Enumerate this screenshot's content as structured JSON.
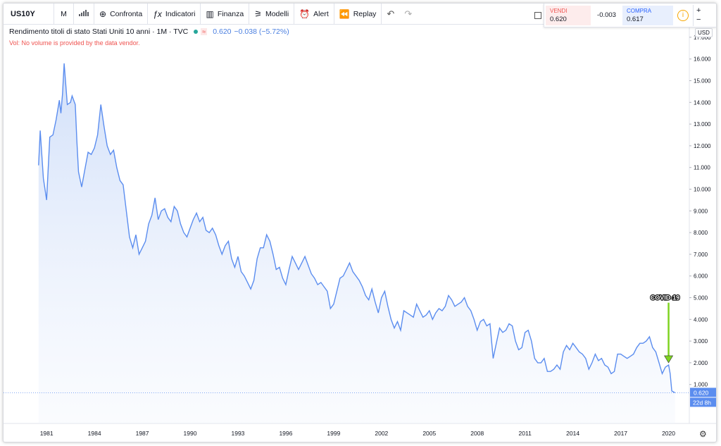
{
  "toolbar": {
    "symbol": "US10Y",
    "interval": "M",
    "items": [
      {
        "label": "Confronta",
        "icon": "⊕"
      },
      {
        "label": "Indicatori",
        "icon": "ƒx"
      },
      {
        "label": "Finanza",
        "icon": "▥"
      },
      {
        "label": "Modelli",
        "icon": "⚞"
      },
      {
        "label": "Alert",
        "icon": "⏰"
      },
      {
        "label": "Replay",
        "icon": "⏪"
      }
    ],
    "undo_icon": "↶",
    "redo_icon": "↷"
  },
  "trade": {
    "sell_label": "VENDI",
    "sell_value": "0.620",
    "spread": "-0.003",
    "buy_label": "COMPRA",
    "buy_value": "0.617",
    "info_icon": "i",
    "zoom_in": "+",
    "zoom_out": "−"
  },
  "legend": {
    "name": "Rendimento titoli di stato Stati Uniti 10 anni · 1M · TVC",
    "wave": "≈",
    "last": "0.620",
    "change": "−0.038 (−5.72%)"
  },
  "vol_note": "Vol: No volume is provided by the data vendor.",
  "axis_currency": "USD",
  "colors": {
    "line": "#5b8def",
    "fill_top": "#c9daf8",
    "annotation_arrow": "#7ed321",
    "price_label_bg": "#5b8def"
  },
  "chart_data": {
    "type": "area",
    "title": "Rendimento titoli di stato Stati Uniti 10 anni",
    "x_ticks": [
      "1981",
      "1984",
      "1987",
      "1990",
      "1993",
      "1996",
      "1999",
      "2002",
      "2005",
      "2008",
      "2011",
      "2014",
      "2017",
      "2020"
    ],
    "y_ticks": [
      "1.000",
      "2.000",
      "3.000",
      "4.000",
      "5.000",
      "6.000",
      "7.000",
      "8.000",
      "9.000",
      "10.000",
      "11.000",
      "12.000",
      "13.000",
      "14.000",
      "15.000",
      "16.000",
      "17.000"
    ],
    "xlim": [
      1978.3,
      2021.3
    ],
    "ylim": [
      0,
      17
    ],
    "last_price_label": "0.620",
    "countdown_label": "22d 8h",
    "annotation": {
      "text": "COVID-19",
      "x": 2020.0,
      "y": 2.0
    },
    "series": [
      {
        "values": [
          [
            1980.5,
            11.1
          ],
          [
            1980.6,
            12.7
          ],
          [
            1980.8,
            10.5
          ],
          [
            1981.0,
            9.5
          ],
          [
            1981.2,
            12.4
          ],
          [
            1981.4,
            12.5
          ],
          [
            1981.6,
            13.2
          ],
          [
            1981.8,
            14.1
          ],
          [
            1981.9,
            13.5
          ],
          [
            1982.0,
            14.4
          ],
          [
            1982.1,
            15.8
          ],
          [
            1982.3,
            13.9
          ],
          [
            1982.5,
            14.0
          ],
          [
            1982.6,
            14.3
          ],
          [
            1982.8,
            13.9
          ],
          [
            1982.9,
            12.2
          ],
          [
            1983.0,
            10.8
          ],
          [
            1983.2,
            10.1
          ],
          [
            1983.4,
            10.9
          ],
          [
            1983.6,
            11.7
          ],
          [
            1983.8,
            11.6
          ],
          [
            1984.0,
            11.9
          ],
          [
            1984.2,
            12.5
          ],
          [
            1984.4,
            13.9
          ],
          [
            1984.6,
            12.9
          ],
          [
            1984.8,
            12.0
          ],
          [
            1985.0,
            11.6
          ],
          [
            1985.2,
            11.8
          ],
          [
            1985.4,
            11.0
          ],
          [
            1985.6,
            10.4
          ],
          [
            1985.8,
            10.2
          ],
          [
            1986.0,
            9.0
          ],
          [
            1986.2,
            7.8
          ],
          [
            1986.4,
            7.3
          ],
          [
            1986.6,
            7.9
          ],
          [
            1986.8,
            7.0
          ],
          [
            1987.0,
            7.3
          ],
          [
            1987.2,
            7.6
          ],
          [
            1987.4,
            8.4
          ],
          [
            1987.6,
            8.8
          ],
          [
            1987.8,
            9.6
          ],
          [
            1988.0,
            8.6
          ],
          [
            1988.2,
            9.0
          ],
          [
            1988.4,
            9.1
          ],
          [
            1988.6,
            8.7
          ],
          [
            1988.8,
            8.5
          ],
          [
            1989.0,
            9.2
          ],
          [
            1989.2,
            9.0
          ],
          [
            1989.4,
            8.4
          ],
          [
            1989.6,
            8.0
          ],
          [
            1989.8,
            7.8
          ],
          [
            1990.0,
            8.2
          ],
          [
            1990.2,
            8.6
          ],
          [
            1990.4,
            8.9
          ],
          [
            1990.6,
            8.5
          ],
          [
            1990.8,
            8.7
          ],
          [
            1991.0,
            8.1
          ],
          [
            1991.2,
            8.0
          ],
          [
            1991.4,
            8.2
          ],
          [
            1991.6,
            7.9
          ],
          [
            1991.8,
            7.4
          ],
          [
            1992.0,
            7.0
          ],
          [
            1992.2,
            7.4
          ],
          [
            1992.4,
            7.6
          ],
          [
            1992.6,
            6.8
          ],
          [
            1992.8,
            6.4
          ],
          [
            1993.0,
            6.9
          ],
          [
            1993.2,
            6.2
          ],
          [
            1993.4,
            6.0
          ],
          [
            1993.6,
            5.7
          ],
          [
            1993.8,
            5.4
          ],
          [
            1994.0,
            5.8
          ],
          [
            1994.2,
            6.8
          ],
          [
            1994.4,
            7.3
          ],
          [
            1994.6,
            7.3
          ],
          [
            1994.8,
            7.9
          ],
          [
            1995.0,
            7.6
          ],
          [
            1995.2,
            7.0
          ],
          [
            1995.4,
            6.3
          ],
          [
            1995.6,
            6.4
          ],
          [
            1995.8,
            5.9
          ],
          [
            1996.0,
            5.6
          ],
          [
            1996.2,
            6.3
          ],
          [
            1996.4,
            6.9
          ],
          [
            1996.6,
            6.6
          ],
          [
            1996.8,
            6.3
          ],
          [
            1997.0,
            6.6
          ],
          [
            1997.2,
            6.9
          ],
          [
            1997.4,
            6.5
          ],
          [
            1997.6,
            6.1
          ],
          [
            1997.8,
            5.9
          ],
          [
            1998.0,
            5.6
          ],
          [
            1998.2,
            5.7
          ],
          [
            1998.4,
            5.5
          ],
          [
            1998.6,
            5.3
          ],
          [
            1998.8,
            4.5
          ],
          [
            1999.0,
            4.7
          ],
          [
            1999.2,
            5.3
          ],
          [
            1999.4,
            5.9
          ],
          [
            1999.6,
            6.0
          ],
          [
            1999.8,
            6.3
          ],
          [
            2000.0,
            6.6
          ],
          [
            2000.2,
            6.2
          ],
          [
            2000.4,
            6.0
          ],
          [
            2000.6,
            5.8
          ],
          [
            2000.8,
            5.5
          ],
          [
            2001.0,
            5.1
          ],
          [
            2001.2,
            4.9
          ],
          [
            2001.4,
            5.4
          ],
          [
            2001.6,
            4.8
          ],
          [
            2001.8,
            4.3
          ],
          [
            2002.0,
            5.0
          ],
          [
            2002.2,
            5.3
          ],
          [
            2002.4,
            4.6
          ],
          [
            2002.6,
            4.0
          ],
          [
            2002.8,
            3.6
          ],
          [
            2003.0,
            3.9
          ],
          [
            2003.2,
            3.5
          ],
          [
            2003.4,
            4.4
          ],
          [
            2003.6,
            4.3
          ],
          [
            2003.8,
            4.2
          ],
          [
            2004.0,
            4.1
          ],
          [
            2004.2,
            4.7
          ],
          [
            2004.4,
            4.4
          ],
          [
            2004.6,
            4.1
          ],
          [
            2004.8,
            4.2
          ],
          [
            2005.0,
            4.4
          ],
          [
            2005.2,
            4.0
          ],
          [
            2005.4,
            4.3
          ],
          [
            2005.6,
            4.5
          ],
          [
            2005.8,
            4.4
          ],
          [
            2006.0,
            4.6
          ],
          [
            2006.2,
            5.1
          ],
          [
            2006.4,
            4.9
          ],
          [
            2006.6,
            4.6
          ],
          [
            2006.8,
            4.7
          ],
          [
            2007.0,
            4.8
          ],
          [
            2007.2,
            5.0
          ],
          [
            2007.4,
            4.6
          ],
          [
            2007.6,
            4.4
          ],
          [
            2007.8,
            4.0
          ],
          [
            2008.0,
            3.5
          ],
          [
            2008.2,
            3.9
          ],
          [
            2008.4,
            4.0
          ],
          [
            2008.6,
            3.7
          ],
          [
            2008.8,
            3.8
          ],
          [
            2009.0,
            2.2
          ],
          [
            2009.2,
            2.9
          ],
          [
            2009.4,
            3.6
          ],
          [
            2009.6,
            3.4
          ],
          [
            2009.8,
            3.5
          ],
          [
            2010.0,
            3.8
          ],
          [
            2010.2,
            3.7
          ],
          [
            2010.4,
            3.0
          ],
          [
            2010.6,
            2.6
          ],
          [
            2010.8,
            2.7
          ],
          [
            2011.0,
            3.4
          ],
          [
            2011.2,
            3.5
          ],
          [
            2011.4,
            3.0
          ],
          [
            2011.6,
            2.2
          ],
          [
            2011.8,
            2.0
          ],
          [
            2012.0,
            2.0
          ],
          [
            2012.2,
            2.2
          ],
          [
            2012.4,
            1.6
          ],
          [
            2012.6,
            1.6
          ],
          [
            2012.8,
            1.7
          ],
          [
            2013.0,
            1.9
          ],
          [
            2013.2,
            1.7
          ],
          [
            2013.4,
            2.5
          ],
          [
            2013.6,
            2.8
          ],
          [
            2013.8,
            2.6
          ],
          [
            2014.0,
            2.9
          ],
          [
            2014.2,
            2.7
          ],
          [
            2014.4,
            2.5
          ],
          [
            2014.6,
            2.4
          ],
          [
            2014.8,
            2.2
          ],
          [
            2015.0,
            1.7
          ],
          [
            2015.2,
            2.0
          ],
          [
            2015.4,
            2.4
          ],
          [
            2015.6,
            2.1
          ],
          [
            2015.8,
            2.2
          ],
          [
            2016.0,
            1.9
          ],
          [
            2016.2,
            1.8
          ],
          [
            2016.4,
            1.5
          ],
          [
            2016.6,
            1.6
          ],
          [
            2016.8,
            2.4
          ],
          [
            2017.0,
            2.4
          ],
          [
            2017.2,
            2.3
          ],
          [
            2017.4,
            2.2
          ],
          [
            2017.6,
            2.3
          ],
          [
            2017.8,
            2.4
          ],
          [
            2018.0,
            2.7
          ],
          [
            2018.2,
            2.9
          ],
          [
            2018.4,
            2.9
          ],
          [
            2018.6,
            3.0
          ],
          [
            2018.8,
            3.2
          ],
          [
            2019.0,
            2.7
          ],
          [
            2019.2,
            2.5
          ],
          [
            2019.4,
            2.0
          ],
          [
            2019.6,
            1.5
          ],
          [
            2019.8,
            1.8
          ],
          [
            2020.0,
            1.9
          ],
          [
            2020.1,
            1.5
          ],
          [
            2020.2,
            0.7
          ],
          [
            2020.4,
            0.62
          ]
        ]
      }
    ]
  }
}
